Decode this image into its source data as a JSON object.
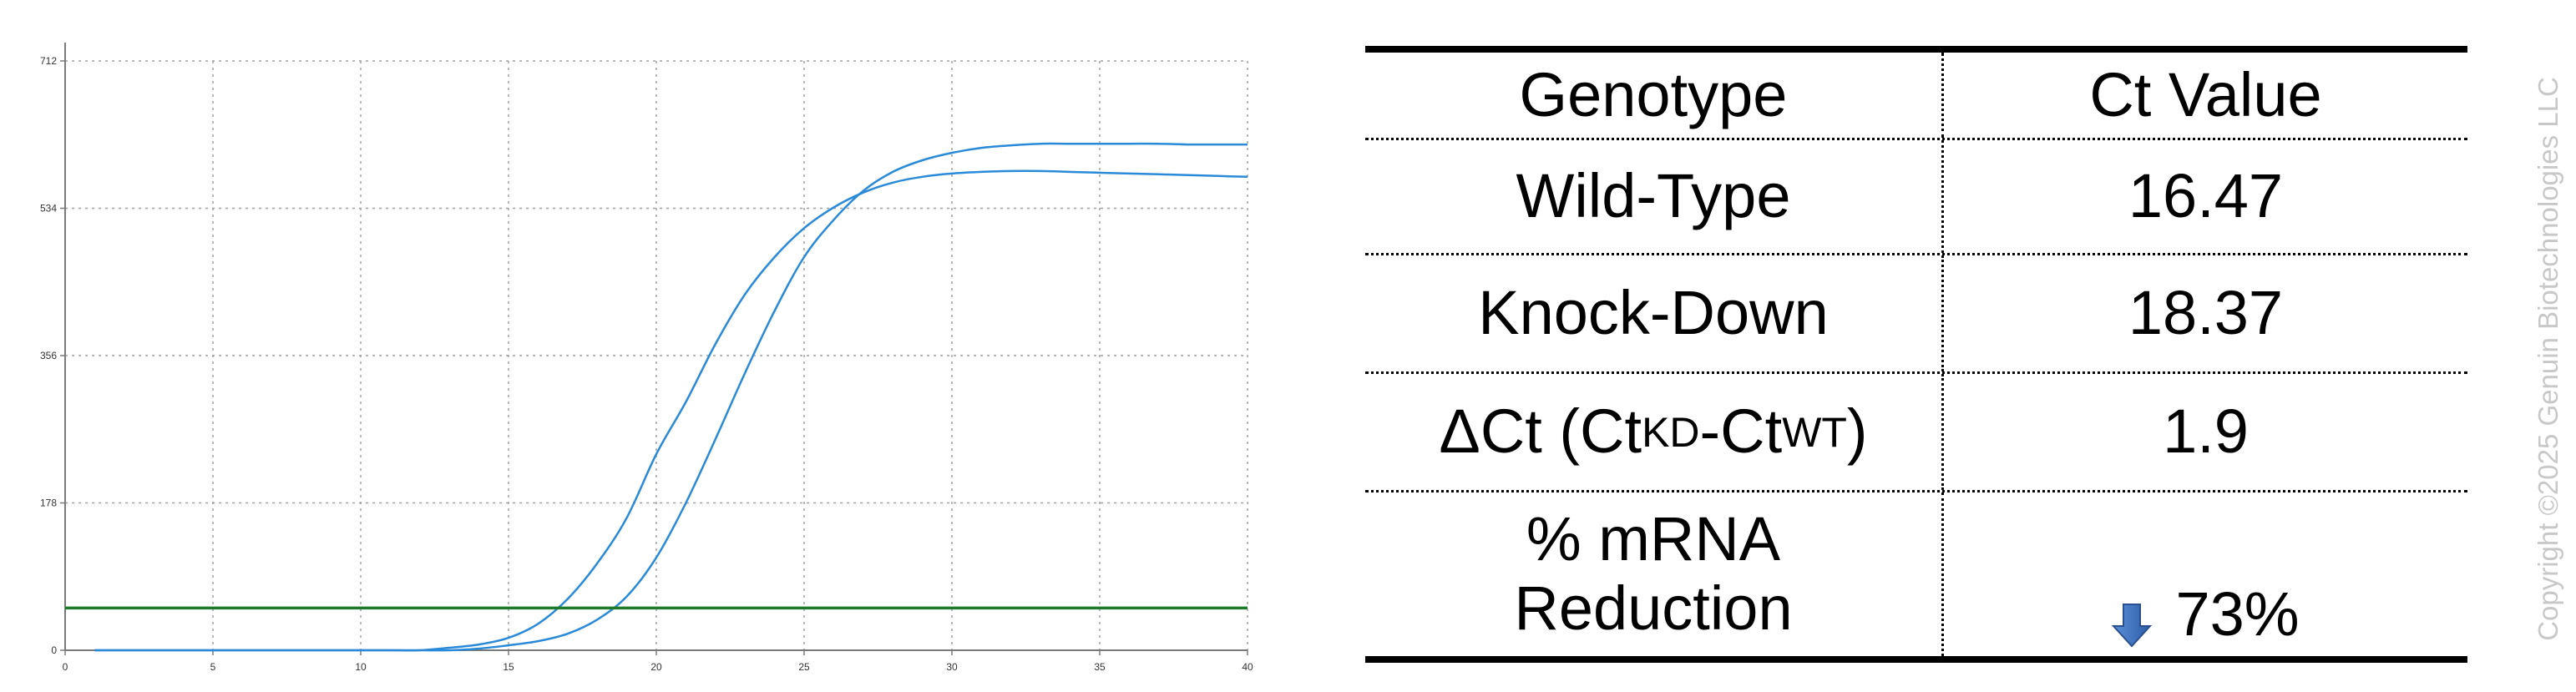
{
  "chart_data": {
    "type": "line",
    "x_ticks": [
      0,
      5,
      10,
      15,
      20,
      25,
      30,
      35,
      40
    ],
    "y_ticks": [
      0,
      178,
      356,
      534,
      712
    ],
    "xlim": [
      0,
      40
    ],
    "ylim": [
      0,
      712
    ],
    "grid": true,
    "threshold": 51,
    "series": [
      {
        "x": [
          1,
          2,
          3,
          4,
          5,
          6,
          7,
          8,
          9,
          10,
          11,
          12,
          13,
          14,
          15,
          16,
          17,
          18,
          19,
          20,
          21,
          22,
          23,
          24,
          25,
          26,
          27,
          28,
          29,
          30,
          31,
          32,
          33,
          34,
          35,
          36,
          37,
          38,
          39,
          40
        ],
        "values": [
          0,
          0,
          0,
          0,
          0,
          0,
          0,
          0,
          0,
          0,
          0,
          0,
          3,
          7,
          15,
          32,
          62,
          105,
          160,
          237,
          300,
          370,
          430,
          475,
          510,
          535,
          553,
          565,
          572,
          576,
          578,
          579,
          579,
          578,
          577,
          576,
          575,
          574,
          573,
          572
        ]
      },
      {
        "x": [
          1,
          2,
          3,
          4,
          5,
          6,
          7,
          8,
          9,
          10,
          11,
          12,
          13,
          14,
          15,
          16,
          17,
          18,
          19,
          20,
          21,
          22,
          23,
          24,
          25,
          26,
          27,
          28,
          29,
          30,
          31,
          32,
          33,
          34,
          35,
          36,
          37,
          38,
          39,
          40
        ],
        "values": [
          0,
          0,
          0,
          0,
          0,
          0,
          0,
          0,
          0,
          0,
          0,
          0,
          0,
          2,
          6,
          11,
          20,
          37,
          65,
          112,
          178,
          255,
          335,
          410,
          475,
          520,
          555,
          578,
          592,
          601,
          607,
          610,
          612,
          612,
          612,
          612,
          612,
          611,
          611,
          611
        ]
      }
    ],
    "colors": {
      "curve": "#2a8ad8",
      "threshold": "#1e7a2a",
      "grid": "#a0a0a0",
      "axis": "#7a7a7a"
    }
  },
  "table": {
    "header": {
      "genotype": "Genotype",
      "ct": "Ct Value"
    },
    "wild_type": {
      "label": "Wild-Type",
      "value": "16.47"
    },
    "knock_down": {
      "label": "Knock-Down",
      "value": "18.37"
    },
    "delta_ct": {
      "prefix": "ΔCt (Ct",
      "sub_kd": "KD",
      "dash": "-Ct",
      "sub_wt": "WT",
      "suffix": ")",
      "value": "1.9"
    },
    "reduction": {
      "label_line1": "% mRNA",
      "label_line2": "Reduction",
      "value": "73%",
      "arrow_icon": "down-arrow-icon",
      "arrow_color": "#3a6fbf"
    }
  },
  "copyright": "Copyright ©2025 Genuin Biotechnologies LLC"
}
